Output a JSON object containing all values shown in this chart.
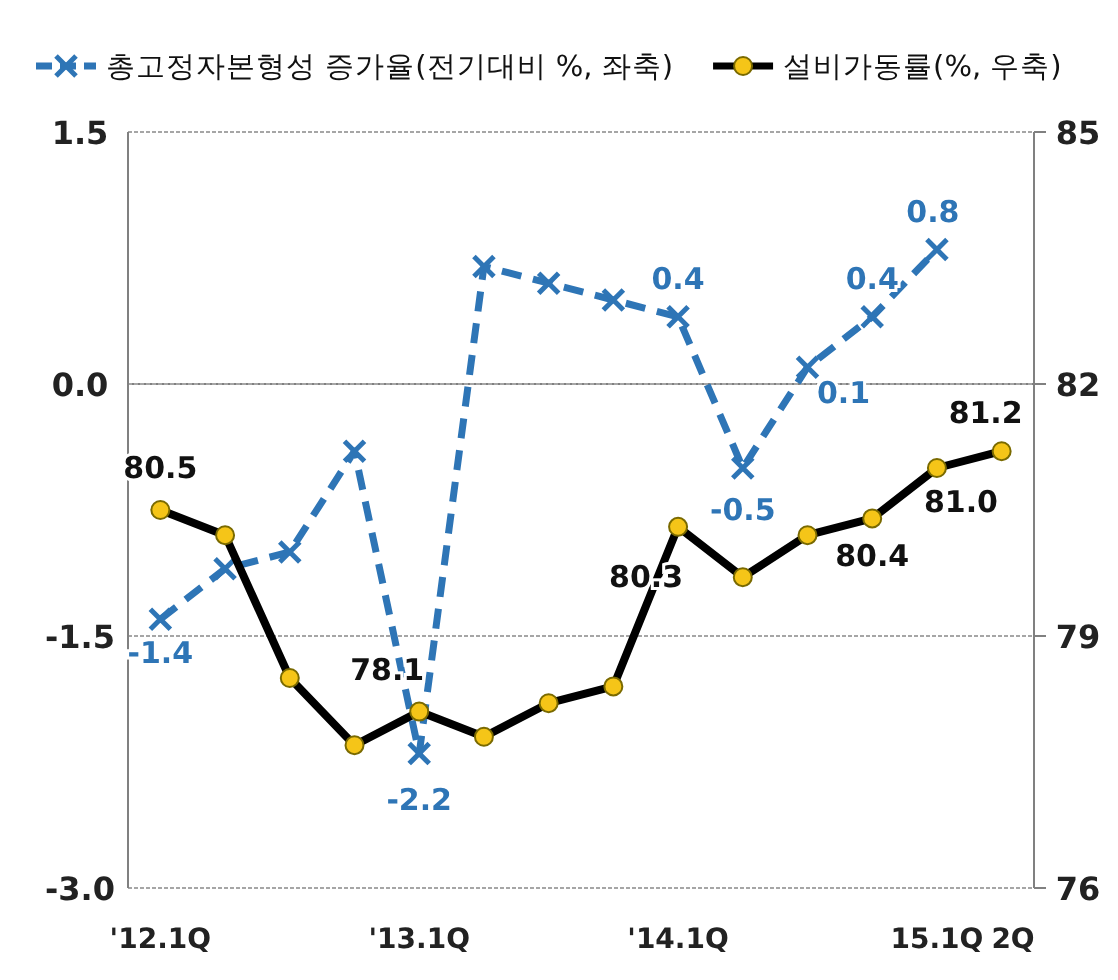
{
  "chart_data": {
    "type": "line",
    "categories": [
      "'12.1Q",
      null,
      null,
      null,
      "'13.1Q",
      null,
      null,
      null,
      "'14.1Q",
      null,
      null,
      null,
      "15.1Q",
      "2Q"
    ],
    "series": [
      {
        "name": "총고정자본형성 증가율(전기대비 %, 좌축)",
        "color": "#2e75b6",
        "line_style": "dashed",
        "marker": "cross",
        "values": [
          -1.4,
          -1.1,
          -1.0,
          -0.4,
          -2.2,
          0.7,
          0.6,
          0.5,
          0.4,
          -0.5,
          0.1,
          0.4,
          0.8,
          null
        ],
        "value_labels": [
          "-1.4",
          null,
          null,
          null,
          "-2.2",
          null,
          null,
          null,
          "0.4",
          "-0.5",
          "0.1",
          "0.4",
          "0.8",
          null
        ]
      },
      {
        "name": "설비가동률(%, 우축)",
        "color": "#000000",
        "line_style": "solid",
        "marker": "circle",
        "axis": "y2",
        "values": [
          80.5,
          80.2,
          78.5,
          77.7,
          78.1,
          77.8,
          78.2,
          78.4,
          80.3,
          79.7,
          80.2,
          80.4,
          81.0,
          81.2
        ],
        "value_labels": [
          "80.5",
          null,
          null,
          null,
          "78.1",
          null,
          null,
          null,
          "80.3",
          null,
          null,
          "80.4",
          "81.0",
          "81.2"
        ]
      }
    ],
    "ylim": [
      -3.0,
      1.5
    ],
    "yticks": [
      {
        "value": -3.0,
        "label": "-3.0"
      },
      {
        "value": -1.5,
        "label": "-1.5"
      },
      {
        "value": 0,
        "label": "0.0"
      },
      {
        "value": 1.5,
        "label": "1.5"
      }
    ],
    "y2lim": [
      76,
      85
    ],
    "y2ticks": [
      76,
      79,
      82,
      85
    ],
    "grid": "y",
    "legend": "top",
    "ref_lines": [
      {
        "axis": "y",
        "value": 0,
        "color": "#808080",
        "line_style": "solid"
      }
    ]
  }
}
